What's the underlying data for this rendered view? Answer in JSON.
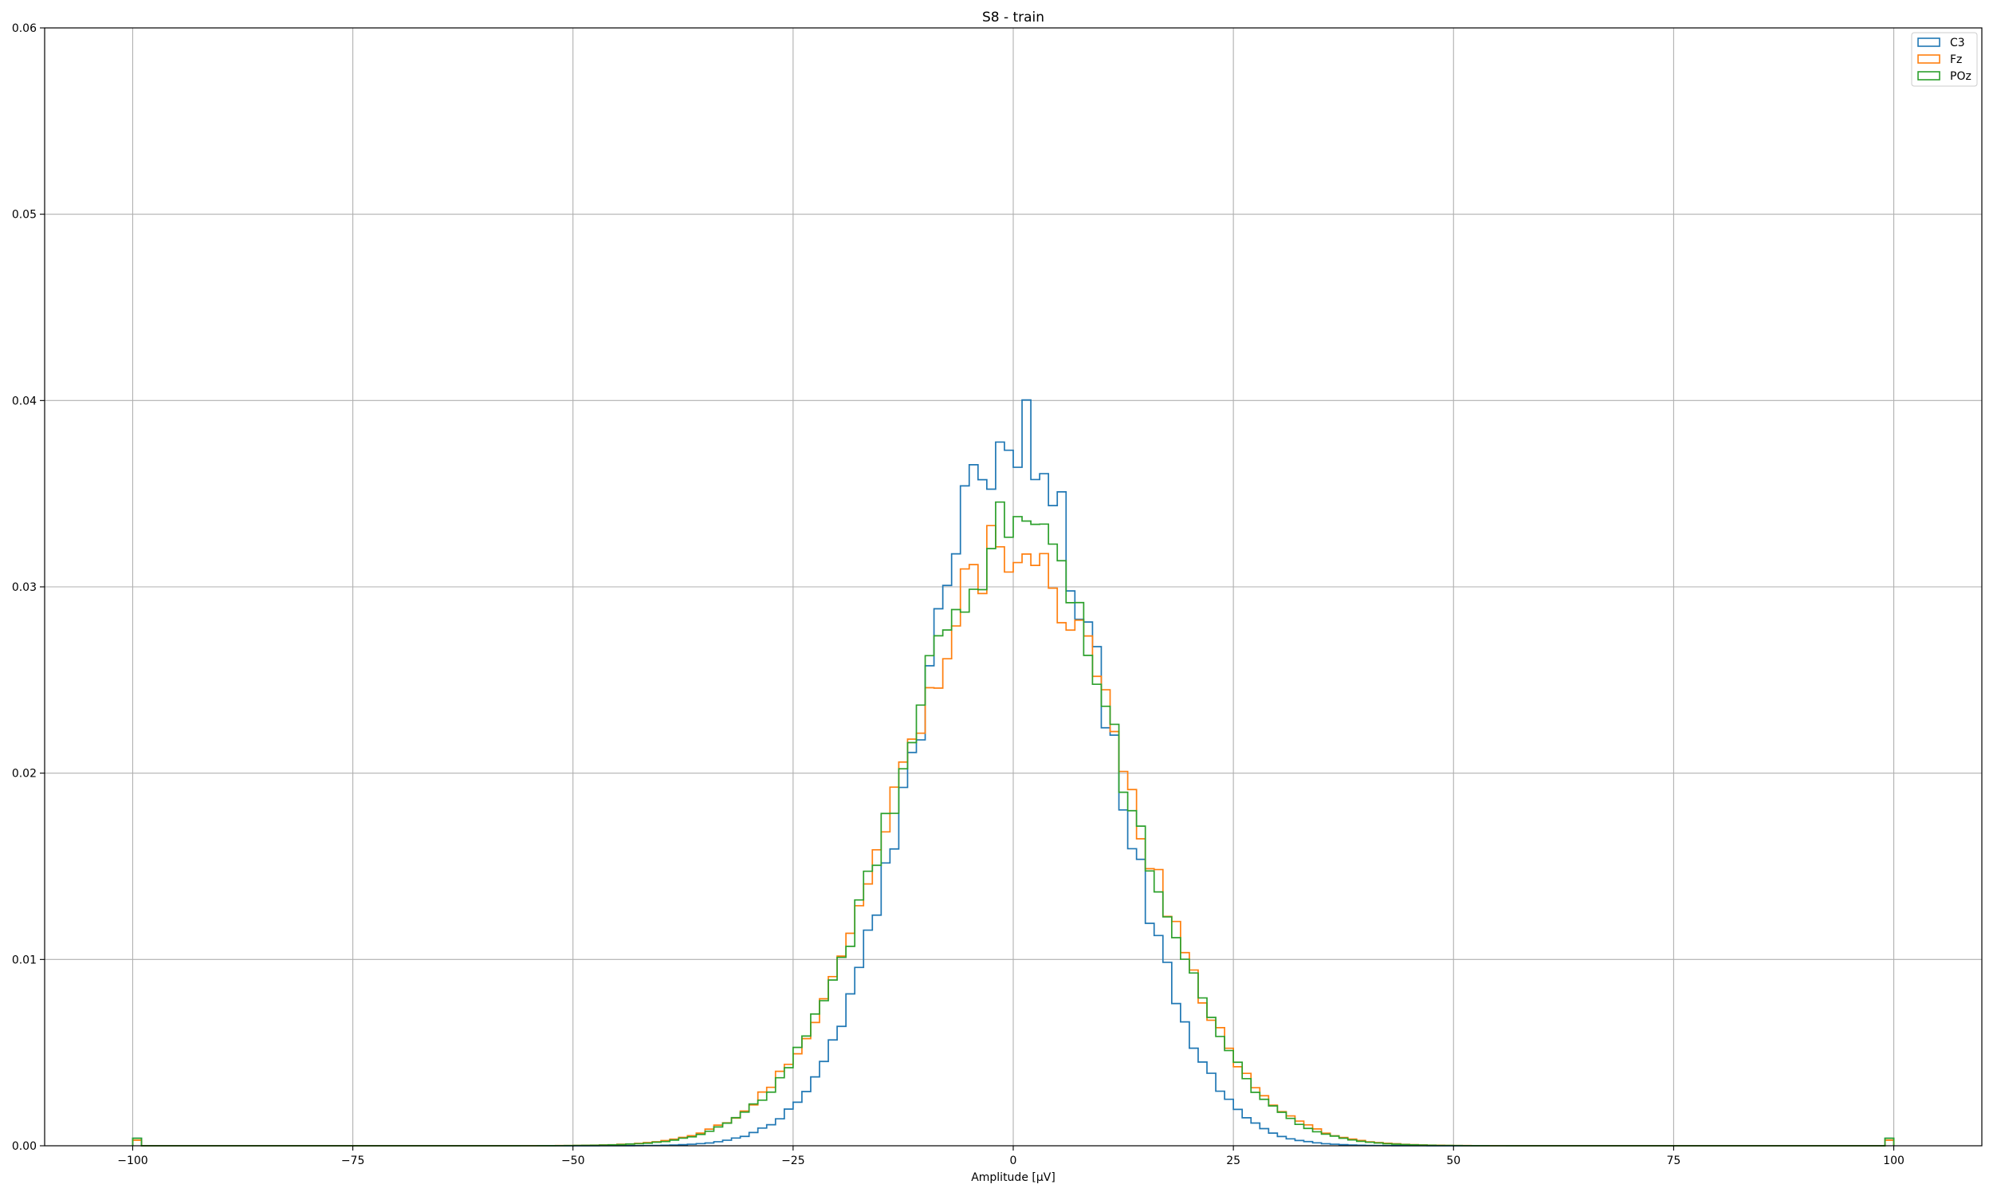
{
  "chart_data": {
    "type": "histogram",
    "style": "step",
    "title": "S8 - train",
    "xlabel": "Amplitude [μV]",
    "ylabel": "",
    "xlim": [
      -110,
      110
    ],
    "ylim": [
      0,
      0.06
    ],
    "xticks": [
      -100,
      -75,
      -50,
      -25,
      0,
      25,
      50,
      75,
      100
    ],
    "xtick_labels": [
      "−100",
      "−75",
      "−50",
      "−25",
      "0",
      "25",
      "50",
      "75",
      "100"
    ],
    "yticks": [
      0.0,
      0.01,
      0.02,
      0.03,
      0.04,
      0.05,
      0.06
    ],
    "ytick_labels": [
      "0.00",
      "0.01",
      "0.02",
      "0.03",
      "0.04",
      "0.05",
      "0.06"
    ],
    "grid": true,
    "legend_position": "top-right",
    "bins": {
      "start": -100,
      "end": 100,
      "count": 200,
      "width": 1
    },
    "series": [
      {
        "name": "C3",
        "color": "#1f77b4",
        "distribution": "approx. normal",
        "center": 0,
        "sd": 10.4,
        "peak_density": 0.0385,
        "edge_spike": 0.0004
      },
      {
        "name": "Fz",
        "color": "#ff7f0e",
        "distribution": "approx. normal",
        "center": 0,
        "sd": 12.8,
        "peak_density": 0.0325,
        "edge_spike": 0.0003
      },
      {
        "name": "POz",
        "color": "#2ca02c",
        "distribution": "approx. normal",
        "center": 0,
        "sd": 12.6,
        "peak_density": 0.033,
        "edge_spike": 0.0004
      }
    ]
  }
}
